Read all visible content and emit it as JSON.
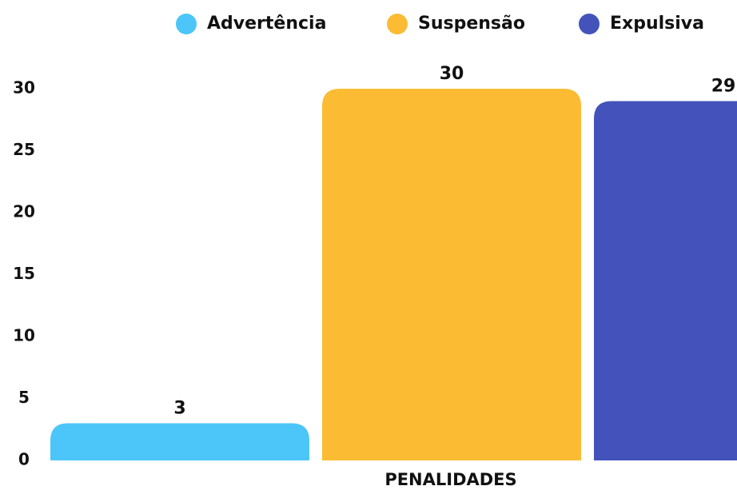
{
  "chart_data": {
    "type": "bar",
    "categories": [
      "PENALIDADES"
    ],
    "series": [
      {
        "name": "Advertência",
        "color": "#4cc5f8",
        "values": [
          3
        ]
      },
      {
        "name": "Suspensão",
        "color": "#fbbc33",
        "values": [
          30
        ]
      },
      {
        "name": "Expulsiva",
        "color": "#4353bb",
        "values": [
          29
        ]
      }
    ],
    "ylim": [
      0,
      30
    ],
    "yticks": [
      0,
      5,
      10,
      15,
      20,
      25,
      30
    ],
    "grid": false,
    "legend": "top"
  }
}
